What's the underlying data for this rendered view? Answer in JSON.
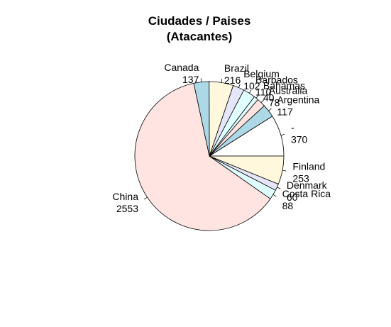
{
  "chart_data": {
    "type": "pie",
    "title": "Ciudades / Paises",
    "subtitle": "(Atacantes)",
    "slices": [
      {
        "label": "-",
        "value": 370,
        "color": "#ffffff"
      },
      {
        "label": "Argentina",
        "value": 117,
        "color": "#add8e6"
      },
      {
        "label": "Australia",
        "value": 78,
        "color": "#ffe4e1"
      },
      {
        "label": "Bahamas",
        "value": 40,
        "color": "#e0ffff"
      },
      {
        "label": "Barbados",
        "value": 110,
        "color": "#e0ffff"
      },
      {
        "label": "Belgium",
        "value": 102,
        "color": "#e6e6fa"
      },
      {
        "label": "Brazil",
        "value": 216,
        "color": "#fff8dc"
      },
      {
        "label": "Canada",
        "value": 137,
        "color": "#add8e6"
      },
      {
        "label": "China",
        "value": 2553,
        "color": "#ffe4e1"
      },
      {
        "label": "Costa Rica",
        "value": 88,
        "color": "#e0ffff"
      },
      {
        "label": "Denmark",
        "value": 60,
        "color": "#e6e6fa"
      },
      {
        "label": "Finland",
        "value": 253,
        "color": "#fff8dc"
      }
    ],
    "legend": "none"
  }
}
